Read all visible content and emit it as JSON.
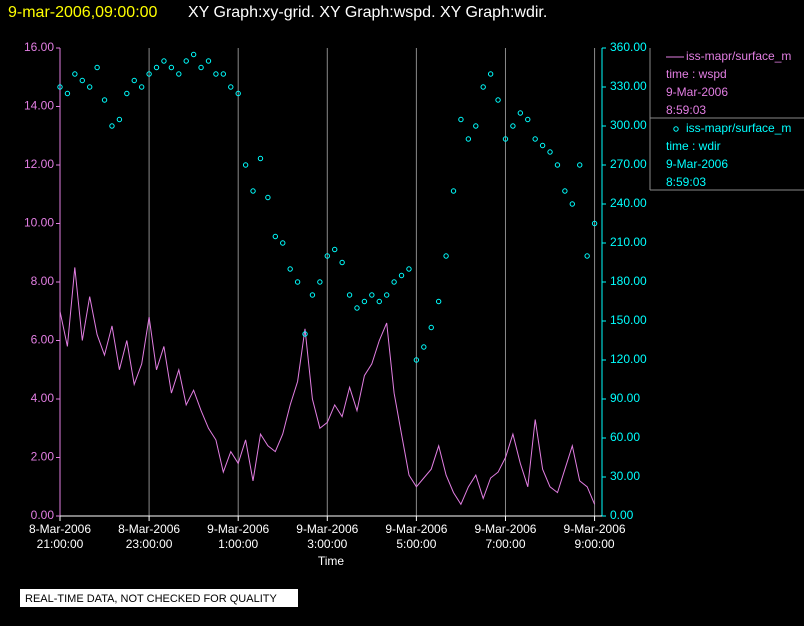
{
  "chart_data": {
    "type": "line",
    "title_time": "9-mar-2006,09:00:00",
    "title": "XY Graph:xy-grid.  XY Graph:wspd.  XY Graph:wdir.",
    "xlabel": "Time",
    "note": "REAL-TIME DATA, NOT CHECKED FOR QUALITY",
    "grid": true,
    "x": [
      "2006-03-08T21:00",
      "2006-03-08T21:10",
      "2006-03-08T21:20",
      "2006-03-08T21:30",
      "2006-03-08T21:40",
      "2006-03-08T21:50",
      "2006-03-08T22:00",
      "2006-03-08T22:10",
      "2006-03-08T22:20",
      "2006-03-08T22:30",
      "2006-03-08T22:40",
      "2006-03-08T22:50",
      "2006-03-08T23:00",
      "2006-03-08T23:10",
      "2006-03-08T23:20",
      "2006-03-08T23:30",
      "2006-03-08T23:40",
      "2006-03-08T23:50",
      "2006-03-09T00:00",
      "2006-03-09T00:10",
      "2006-03-09T00:20",
      "2006-03-09T00:30",
      "2006-03-09T00:40",
      "2006-03-09T00:50",
      "2006-03-09T01:00",
      "2006-03-09T01:10",
      "2006-03-09T01:20",
      "2006-03-09T01:30",
      "2006-03-09T01:40",
      "2006-03-09T01:50",
      "2006-03-09T02:00",
      "2006-03-09T02:10",
      "2006-03-09T02:20",
      "2006-03-09T02:30",
      "2006-03-09T02:40",
      "2006-03-09T02:50",
      "2006-03-09T03:00",
      "2006-03-09T03:10",
      "2006-03-09T03:20",
      "2006-03-09T03:30",
      "2006-03-09T03:40",
      "2006-03-09T03:50",
      "2006-03-09T04:00",
      "2006-03-09T04:10",
      "2006-03-09T04:20",
      "2006-03-09T04:30",
      "2006-03-09T04:40",
      "2006-03-09T04:50",
      "2006-03-09T05:00",
      "2006-03-09T05:10",
      "2006-03-09T05:20",
      "2006-03-09T05:30",
      "2006-03-09T05:40",
      "2006-03-09T05:50",
      "2006-03-09T06:00",
      "2006-03-09T06:10",
      "2006-03-09T06:20",
      "2006-03-09T06:30",
      "2006-03-09T06:40",
      "2006-03-09T06:50",
      "2006-03-09T07:00",
      "2006-03-09T07:10",
      "2006-03-09T07:20",
      "2006-03-09T07:30",
      "2006-03-09T07:40",
      "2006-03-09T07:50",
      "2006-03-09T08:00",
      "2006-03-09T08:10",
      "2006-03-09T08:20",
      "2006-03-09T08:30",
      "2006-03-09T08:40",
      "2006-03-09T08:50",
      "2006-03-09T09:00"
    ],
    "xlim": [
      "2006-03-08T21:00",
      "2006-03-09T09:10"
    ],
    "xticks": [
      {
        "value": "2006-03-08T21:00",
        "label": "8-Mar-2006 21:00:00"
      },
      {
        "value": "2006-03-08T23:00",
        "label": "8-Mar-2006 23:00:00"
      },
      {
        "value": "2006-03-09T01:00",
        "label": "9-Mar-2006 1:00:00"
      },
      {
        "value": "2006-03-09T03:00",
        "label": "9-Mar-2006 3:00:00"
      },
      {
        "value": "2006-03-09T05:00",
        "label": "9-Mar-2006 5:00:00"
      },
      {
        "value": "2006-03-09T07:00",
        "label": "9-Mar-2006 7:00:00"
      },
      {
        "value": "2006-03-09T09:00",
        "label": "9-Mar-2006 9:00:00"
      }
    ],
    "ylim": [
      0,
      16
    ],
    "yticks": [
      {
        "value": 0,
        "label": "0.00"
      },
      {
        "value": 2,
        "label": "2.00"
      },
      {
        "value": 4,
        "label": "4.00"
      },
      {
        "value": 6,
        "label": "6.00"
      },
      {
        "value": 8,
        "label": "8.00"
      },
      {
        "value": 10,
        "label": "10.00"
      },
      {
        "value": 12,
        "label": "12.00"
      },
      {
        "value": 14,
        "label": "14.00"
      },
      {
        "value": 16,
        "label": "16.00"
      }
    ],
    "y2lim": [
      0,
      360
    ],
    "y2ticks": [
      {
        "value": 0,
        "label": "0.00"
      },
      {
        "value": 30,
        "label": "30.00"
      },
      {
        "value": 60,
        "label": "60.00"
      },
      {
        "value": 90,
        "label": "90.00"
      },
      {
        "value": 120,
        "label": "120.00"
      },
      {
        "value": 150,
        "label": "150.00"
      },
      {
        "value": 180,
        "label": "180.00"
      },
      {
        "value": 210,
        "label": "210.00"
      },
      {
        "value": 240,
        "label": "240.00"
      },
      {
        "value": 270,
        "label": "270.00"
      },
      {
        "value": 300,
        "label": "300.00"
      },
      {
        "value": 330,
        "label": "330.00"
      },
      {
        "value": 360,
        "label": "360.00"
      }
    ],
    "series": [
      {
        "name": "iss-mapr/surface_m",
        "legend_lines": [
          "time : wspd",
          "9-Mar-2006",
          "8:59:03"
        ],
        "color": "#e27ee2",
        "style": "line",
        "values": [
          7.0,
          5.8,
          8.5,
          6.0,
          7.5,
          6.2,
          5.5,
          6.5,
          5.0,
          6.0,
          4.5,
          5.2,
          6.8,
          5.0,
          5.8,
          4.2,
          5.0,
          3.8,
          4.3,
          3.6,
          3.0,
          2.6,
          1.5,
          2.2,
          1.8,
          2.6,
          1.2,
          2.8,
          2.4,
          2.2,
          2.8,
          3.8,
          4.6,
          6.4,
          4.0,
          3.0,
          3.2,
          3.8,
          3.4,
          4.4,
          3.6,
          4.8,
          5.2,
          6.0,
          6.6,
          4.2,
          2.8,
          1.4,
          1.0,
          1.3,
          1.6,
          2.4,
          1.4,
          0.8,
          0.4,
          1.0,
          1.4,
          0.6,
          1.3,
          1.5,
          2.0,
          2.8,
          1.8,
          1.0,
          3.3,
          1.6,
          1.0,
          0.8,
          1.6,
          2.4,
          1.2,
          1.0,
          0.4
        ]
      },
      {
        "name": "iss-mapr/surface_m",
        "legend_lines": [
          "time : wdir",
          "9-Mar-2006",
          "8:59:03"
        ],
        "color": "#00ffff",
        "style": "scatter",
        "axis": "y2",
        "values": [
          330,
          325,
          340,
          335,
          330,
          345,
          320,
          300,
          305,
          325,
          335,
          330,
          340,
          345,
          350,
          345,
          340,
          350,
          355,
          345,
          350,
          340,
          340,
          330,
          325,
          270,
          250,
          275,
          245,
          215,
          210,
          190,
          180,
          140,
          170,
          180,
          200,
          205,
          195,
          170,
          160,
          165,
          170,
          165,
          170,
          180,
          185,
          190,
          120,
          130,
          145,
          165,
          200,
          250,
          305,
          290,
          300,
          330,
          340,
          320,
          290,
          300,
          310,
          305,
          290,
          285,
          280,
          270,
          250,
          240,
          270,
          200,
          225
        ]
      }
    ]
  }
}
